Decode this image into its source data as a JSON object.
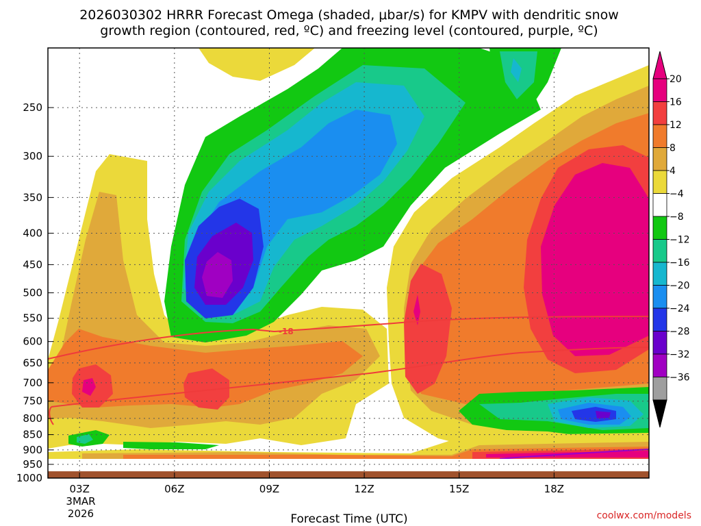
{
  "chart_data": {
    "type": "heatmap",
    "title_line1": "2026030302 HRRR Forecast Omega (shaded, μbar/s) for KMPV with dendritic snow",
    "title_line2": "growth region (contoured, red, ºC) and freezing level (contoured, purple, ºC)",
    "xlabel": "Forecast Time (UTC)",
    "ylabel": "",
    "x_ticks": [
      "03Z",
      "06Z",
      "09Z",
      "12Z",
      "15Z",
      "18Z"
    ],
    "x_tick_hours": [
      3,
      6,
      9,
      12,
      15,
      18
    ],
    "x_range_hours": [
      2,
      21
    ],
    "date_label": [
      "3MAR",
      "2026"
    ],
    "y_ticks": [
      250,
      300,
      350,
      400,
      450,
      500,
      550,
      600,
      650,
      700,
      750,
      800,
      850,
      900,
      950,
      1000
    ],
    "y_range_hpa": [
      200,
      1000
    ],
    "y_scale": "log-pressure",
    "grid": true,
    "colorbar": {
      "labels": [
        "20",
        "16",
        "12",
        "8",
        "4",
        "−4",
        "−8",
        "−12",
        "−16",
        "−20",
        "−24",
        "−28",
        "−32",
        "−36"
      ],
      "colors": [
        "#e6007e",
        "#f23f3f",
        "#f07b2c",
        "#e0a93a",
        "#ebd93a",
        "#ffffff",
        "#12c812",
        "#18c98a",
        "#16b7cf",
        "#1a8ef0",
        "#2336e8",
        "#6a00cc",
        "#a000c2",
        "#9e9e9e"
      ],
      "top_arrow_color": "#e6007e",
      "bottom_arrow_color": "#000000"
    },
    "contour_labels": [
      "-18"
    ],
    "ground_color": "#a0522d",
    "credit": "coolwx.com/models"
  }
}
